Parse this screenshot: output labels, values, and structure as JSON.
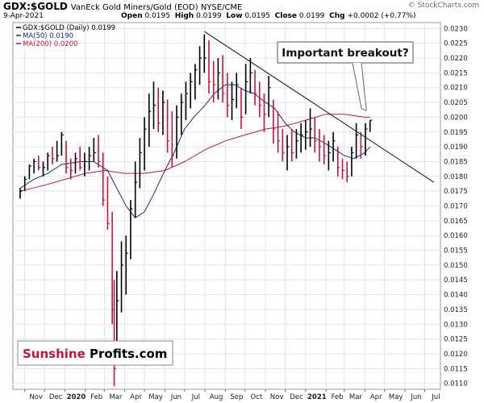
{
  "header": {
    "symbol": "GDX:$GOLD",
    "description": "VanEck Gold Miners/Gold (EOD) NYSE/CME",
    "credit": "© StockCharts.com",
    "date": "9-Apr-2021",
    "open_label": "Open",
    "open": "0.0195",
    "high_label": "High",
    "high": "0.0199",
    "low_label": "Low",
    "low": "0.0195",
    "close_label": "Close",
    "close": "0.0199",
    "chg_label": "Chg",
    "chg": "+0.0002 (+0.77%)"
  },
  "legend": [
    {
      "label": "GDX:$GOLD (Daily) 0.0199",
      "color": "#000000"
    },
    {
      "label": "MA(50) 0.0190",
      "color": "#1c2a8c"
    },
    {
      "label": "MA(200) 0.0200",
      "color": "#c4143c"
    }
  ],
  "annotation": "Important breakout?",
  "watermark": {
    "part1": "Sunshine",
    "part2": "Profits.com",
    "color1": "#c4143c",
    "color2": "#000000"
  },
  "chart_data": {
    "type": "ohlc",
    "title": "GDX:$GOLD VanEck Gold Miners/Gold (EOD) NYSE/CME",
    "x_labels": [
      "Nov",
      "Dec",
      "2020",
      "Feb",
      "Mar",
      "Apr",
      "May",
      "Jun",
      "Jul",
      "Aug",
      "Sep",
      "Oct",
      "Nov",
      "Dec",
      "2021",
      "Feb",
      "Mar",
      "Apr",
      "May",
      "Jun",
      "Jul"
    ],
    "y_ticks": [
      "0.0110",
      "0.0115",
      "0.0120",
      "0.0125",
      "0.0130",
      "0.0135",
      "0.0140",
      "0.0145",
      "0.0150",
      "0.0155",
      "0.0160",
      "0.0165",
      "0.0170",
      "0.0175",
      "0.0180",
      "0.0185",
      "0.0190",
      "0.0195",
      "0.0200",
      "0.0205",
      "0.0210",
      "0.0215",
      "0.0220",
      "0.0225",
      "0.0230"
    ],
    "ylim": [
      0.0108,
      0.0232
    ],
    "y_axis_side": "right",
    "grid": true,
    "price_color": "#000000",
    "up_color": "#000000",
    "down_color": "#c4143c",
    "price_series": [
      {
        "date": "2019-10-25",
        "high": 0.0176,
        "low": 0.01725,
        "close": 0.0175
      },
      {
        "date": "2019-11-01",
        "high": 0.018,
        "low": 0.0175,
        "close": 0.0179
      },
      {
        "date": "2019-11-08",
        "high": 0.0184,
        "low": 0.0179,
        "close": 0.01835
      },
      {
        "date": "2019-11-15",
        "high": 0.0186,
        "low": 0.0181,
        "close": 0.0185
      },
      {
        "date": "2019-11-22",
        "high": 0.0187,
        "low": 0.0182,
        "close": 0.0183
      },
      {
        "date": "2019-11-29",
        "high": 0.0185,
        "low": 0.018,
        "close": 0.0183
      },
      {
        "date": "2019-12-06",
        "high": 0.0188,
        "low": 0.0182,
        "close": 0.0187
      },
      {
        "date": "2019-12-13",
        "high": 0.019,
        "low": 0.0184,
        "close": 0.0186
      },
      {
        "date": "2019-12-20",
        "high": 0.0192,
        "low": 0.0185,
        "close": 0.0187
      },
      {
        "date": "2019-12-27",
        "high": 0.0195,
        "low": 0.0187,
        "close": 0.0194
      },
      {
        "date": "2020-01-03",
        "high": 0.0192,
        "low": 0.0181,
        "close": 0.0183
      },
      {
        "date": "2020-01-10",
        "high": 0.0186,
        "low": 0.0179,
        "close": 0.0182
      },
      {
        "date": "2020-01-17",
        "high": 0.0188,
        "low": 0.0181,
        "close": 0.0186
      },
      {
        "date": "2020-01-24",
        "high": 0.019,
        "low": 0.0182,
        "close": 0.0183
      },
      {
        "date": "2020-01-31",
        "high": 0.0188,
        "low": 0.018,
        "close": 0.0185
      },
      {
        "date": "2020-02-07",
        "high": 0.019,
        "low": 0.0182,
        "close": 0.0187
      },
      {
        "date": "2020-02-14",
        "high": 0.0193,
        "low": 0.0185,
        "close": 0.0188
      },
      {
        "date": "2020-02-21",
        "high": 0.0194,
        "low": 0.0183,
        "close": 0.0185
      },
      {
        "date": "2020-02-28",
        "high": 0.0188,
        "low": 0.017,
        "close": 0.0172
      },
      {
        "date": "2020-03-06",
        "high": 0.018,
        "low": 0.0162,
        "close": 0.0164
      },
      {
        "date": "2020-03-13",
        "high": 0.0168,
        "low": 0.013,
        "close": 0.0135
      },
      {
        "date": "2020-03-16",
        "high": 0.0145,
        "low": 0.0109,
        "close": 0.0115
      },
      {
        "date": "2020-03-20",
        "high": 0.0148,
        "low": 0.012,
        "close": 0.0138
      },
      {
        "date": "2020-03-27",
        "high": 0.0158,
        "low": 0.0134,
        "close": 0.015
      },
      {
        "date": "2020-04-03",
        "high": 0.016,
        "low": 0.014,
        "close": 0.0154
      },
      {
        "date": "2020-04-10",
        "high": 0.0172,
        "low": 0.0152,
        "close": 0.0169
      },
      {
        "date": "2020-04-17",
        "high": 0.0185,
        "low": 0.0166,
        "close": 0.0178
      },
      {
        "date": "2020-04-24",
        "high": 0.0193,
        "low": 0.0176,
        "close": 0.0188
      },
      {
        "date": "2020-05-01",
        "high": 0.02,
        "low": 0.0182,
        "close": 0.0196
      },
      {
        "date": "2020-05-08",
        "high": 0.0208,
        "low": 0.019,
        "close": 0.0202
      },
      {
        "date": "2020-05-15",
        "high": 0.0212,
        "low": 0.0196,
        "close": 0.0204
      },
      {
        "date": "2020-05-22",
        "high": 0.021,
        "low": 0.0195,
        "close": 0.0198
      },
      {
        "date": "2020-05-29",
        "high": 0.0209,
        "low": 0.0194,
        "close": 0.0205
      },
      {
        "date": "2020-06-05",
        "high": 0.0206,
        "low": 0.0188,
        "close": 0.0192
      },
      {
        "date": "2020-06-12",
        "high": 0.0202,
        "low": 0.0183,
        "close": 0.0187
      },
      {
        "date": "2020-06-19",
        "high": 0.0204,
        "low": 0.0186,
        "close": 0.02
      },
      {
        "date": "2020-06-26",
        "high": 0.0208,
        "low": 0.0194,
        "close": 0.0205
      },
      {
        "date": "2020-07-03",
        "high": 0.0212,
        "low": 0.0199,
        "close": 0.0208
      },
      {
        "date": "2020-07-10",
        "high": 0.0215,
        "low": 0.0203,
        "close": 0.0212
      },
      {
        "date": "2020-07-17",
        "high": 0.0218,
        "low": 0.0206,
        "close": 0.0216
      },
      {
        "date": "2020-07-24",
        "high": 0.0224,
        "low": 0.0211,
        "close": 0.022
      },
      {
        "date": "2020-07-31",
        "high": 0.0228,
        "low": 0.0215,
        "close": 0.022
      },
      {
        "date": "2020-08-07",
        "high": 0.0226,
        "low": 0.0208,
        "close": 0.0212
      },
      {
        "date": "2020-08-14",
        "high": 0.0219,
        "low": 0.0205,
        "close": 0.0211
      },
      {
        "date": "2020-08-21",
        "high": 0.022,
        "low": 0.0206,
        "close": 0.0215
      },
      {
        "date": "2020-08-28",
        "high": 0.0221,
        "low": 0.0205,
        "close": 0.0208
      },
      {
        "date": "2020-09-04",
        "high": 0.0215,
        "low": 0.02,
        "close": 0.0204
      },
      {
        "date": "2020-09-11",
        "high": 0.0212,
        "low": 0.0199,
        "close": 0.0206
      },
      {
        "date": "2020-09-18",
        "high": 0.0215,
        "low": 0.0203,
        "close": 0.0211
      },
      {
        "date": "2020-09-25",
        "high": 0.021,
        "low": 0.0196,
        "close": 0.02
      },
      {
        "date": "2020-10-02",
        "high": 0.0218,
        "low": 0.0201,
        "close": 0.0212
      },
      {
        "date": "2020-10-09",
        "high": 0.022,
        "low": 0.0208,
        "close": 0.0215
      },
      {
        "date": "2020-10-16",
        "high": 0.0216,
        "low": 0.0204,
        "close": 0.0208
      },
      {
        "date": "2020-10-23",
        "high": 0.0212,
        "low": 0.02,
        "close": 0.0204
      },
      {
        "date": "2020-10-30",
        "high": 0.0208,
        "low": 0.0195,
        "close": 0.0201
      },
      {
        "date": "2020-11-06",
        "high": 0.0214,
        "low": 0.02,
        "close": 0.021
      },
      {
        "date": "2020-11-13",
        "high": 0.0206,
        "low": 0.0191,
        "close": 0.0196
      },
      {
        "date": "2020-11-20",
        "high": 0.0202,
        "low": 0.0188,
        "close": 0.0192
      },
      {
        "date": "2020-11-27",
        "high": 0.0196,
        "low": 0.0185,
        "close": 0.0188
      },
      {
        "date": "2020-12-04",
        "high": 0.0194,
        "low": 0.0182,
        "close": 0.019
      },
      {
        "date": "2020-12-11",
        "high": 0.0196,
        "low": 0.0185,
        "close": 0.0188
      },
      {
        "date": "2020-12-18",
        "high": 0.0196,
        "low": 0.0186,
        "close": 0.0192
      },
      {
        "date": "2020-12-25",
        "high": 0.0198,
        "low": 0.0188,
        "close": 0.0194
      },
      {
        "date": "2021-01-01",
        "high": 0.0199,
        "low": 0.0189,
        "close": 0.0195
      },
      {
        "date": "2021-01-08",
        "high": 0.0203,
        "low": 0.019,
        "close": 0.0196
      },
      {
        "date": "2021-01-15",
        "high": 0.02,
        "low": 0.0188,
        "close": 0.0192
      },
      {
        "date": "2021-01-22",
        "high": 0.0196,
        "low": 0.0185,
        "close": 0.019
      },
      {
        "date": "2021-01-29",
        "high": 0.0194,
        "low": 0.0184,
        "close": 0.0187
      },
      {
        "date": "2021-02-05",
        "high": 0.0192,
        "low": 0.0182,
        "close": 0.0188
      },
      {
        "date": "2021-02-12",
        "high": 0.0195,
        "low": 0.0185,
        "close": 0.0192
      },
      {
        "date": "2021-02-19",
        "high": 0.019,
        "low": 0.018,
        "close": 0.0183
      },
      {
        "date": "2021-02-26",
        "high": 0.0186,
        "low": 0.0179,
        "close": 0.0182
      },
      {
        "date": "2021-03-05",
        "high": 0.0185,
        "low": 0.0178,
        "close": 0.018
      },
      {
        "date": "2021-03-12",
        "high": 0.019,
        "low": 0.018,
        "close": 0.0188
      },
      {
        "date": "2021-03-19",
        "high": 0.0198,
        "low": 0.0186,
        "close": 0.0194
      },
      {
        "date": "2021-03-26",
        "high": 0.0195,
        "low": 0.0186,
        "close": 0.019
      },
      {
        "date": "2021-04-02",
        "high": 0.0198,
        "low": 0.0187,
        "close": 0.0196
      },
      {
        "date": "2021-04-09",
        "high": 0.0199,
        "low": 0.0195,
        "close": 0.0199
      }
    ],
    "series": [
      {
        "name": "MA(50)",
        "color": "#1c2a8c",
        "points": [
          [
            "2019-10-25",
            0.0176
          ],
          [
            "2019-11-15",
            0.0179
          ],
          [
            "2019-12-06",
            0.0181
          ],
          [
            "2019-12-27",
            0.0184
          ],
          [
            "2020-01-24",
            0.0185
          ],
          [
            "2020-02-14",
            0.0185
          ],
          [
            "2020-03-06",
            0.0182
          ],
          [
            "2020-03-20",
            0.0176
          ],
          [
            "2020-04-03",
            0.017
          ],
          [
            "2020-04-17",
            0.0166
          ],
          [
            "2020-05-01",
            0.0168
          ],
          [
            "2020-05-15",
            0.0174
          ],
          [
            "2020-06-01",
            0.0182
          ],
          [
            "2020-06-15",
            0.0188
          ],
          [
            "2020-07-01",
            0.0196
          ],
          [
            "2020-07-15",
            0.02
          ],
          [
            "2020-08-01",
            0.0204
          ],
          [
            "2020-08-15",
            0.0208
          ],
          [
            "2020-09-01",
            0.0211
          ],
          [
            "2020-09-15",
            0.0211
          ],
          [
            "2020-10-01",
            0.0209
          ],
          [
            "2020-10-15",
            0.0208
          ],
          [
            "2020-11-01",
            0.0205
          ],
          [
            "2020-11-15",
            0.0203
          ],
          [
            "2020-12-01",
            0.0198
          ],
          [
            "2020-12-15",
            0.0195
          ],
          [
            "2021-01-01",
            0.0193
          ],
          [
            "2021-01-15",
            0.0193
          ],
          [
            "2021-02-01",
            0.0191
          ],
          [
            "2021-02-15",
            0.0189
          ],
          [
            "2021-03-01",
            0.0187
          ],
          [
            "2021-03-15",
            0.0186
          ],
          [
            "2021-04-01",
            0.0188
          ],
          [
            "2021-04-09",
            0.019
          ]
        ]
      },
      {
        "name": "MA(200)",
        "color": "#c4143c",
        "points": [
          [
            "2019-10-25",
            0.0175
          ],
          [
            "2019-12-01",
            0.0177
          ],
          [
            "2020-01-01",
            0.0179
          ],
          [
            "2020-02-01",
            0.0181
          ],
          [
            "2020-03-01",
            0.0182
          ],
          [
            "2020-04-01",
            0.0181
          ],
          [
            "2020-05-01",
            0.0181
          ],
          [
            "2020-06-01",
            0.0182
          ],
          [
            "2020-07-01",
            0.0185
          ],
          [
            "2020-08-01",
            0.0189
          ],
          [
            "2020-09-01",
            0.0192
          ],
          [
            "2020-10-01",
            0.0194
          ],
          [
            "2020-11-01",
            0.0196
          ],
          [
            "2020-12-01",
            0.0197
          ],
          [
            "2021-01-01",
            0.0199
          ],
          [
            "2021-02-01",
            0.0201
          ],
          [
            "2021-03-01",
            0.0201
          ],
          [
            "2021-04-01",
            0.02
          ],
          [
            "2021-04-09",
            0.02
          ]
        ]
      }
    ],
    "trendline": {
      "from": [
        "2020-07-31",
        0.0229
      ],
      "to": [
        "2021-07-15",
        0.0178
      ]
    },
    "callout": {
      "text": "Important breakout?",
      "points_to": [
        "2021-04-01",
        0.0202
      ]
    }
  }
}
